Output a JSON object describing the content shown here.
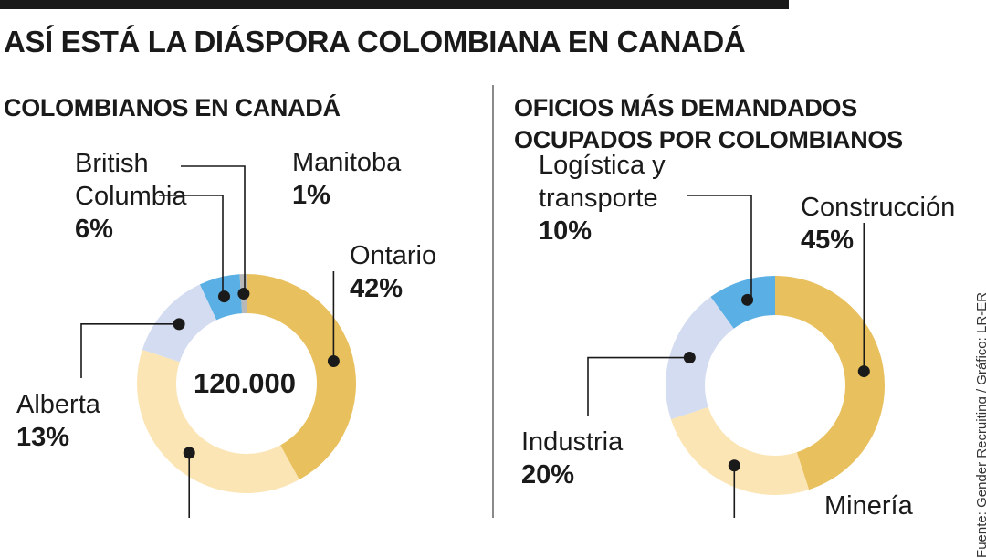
{
  "headline": "ASÍ ESTÁ LA DIÁSPORA COLOMBIANA EN CANADÁ",
  "credit": "Fuente: Gender Recruiting / Gráfico: LR-ER",
  "colors": {
    "ochre": "#e8c05e",
    "cream": "#fbe5b4",
    "lavender": "#d3dcf0",
    "sky": "#5aafe4",
    "grey": "#b8b8b8"
  },
  "chart_data": [
    {
      "type": "pie",
      "title": "COLOMBIANOS EN CANADÁ",
      "center_label": "120.000",
      "series": [
        {
          "label": "Ontario",
          "value_label": "42%",
          "value": 42,
          "color": "#e8c05e"
        },
        {
          "label": "",
          "value_label": "",
          "value": 38,
          "color": "#fbe5b4"
        },
        {
          "label": "Alberta",
          "value_label": "13%",
          "value": 13,
          "color": "#d3dcf0"
        },
        {
          "label": "British Columbia",
          "value_label": "6%",
          "value": 6,
          "color": "#5aafe4"
        },
        {
          "label": "Manitoba",
          "value_label": "1%",
          "value": 1,
          "color": "#b8b8b8"
        }
      ]
    },
    {
      "type": "pie",
      "title": "OFICIOS MÁS DEMANDADOS OCUPADOS POR COLOMBIANOS",
      "center_label": "",
      "series": [
        {
          "label": "Construcción",
          "value_label": "45%",
          "value": 45,
          "color": "#e8c05e"
        },
        {
          "label": "Minería",
          "value_label": "",
          "value": 25,
          "color": "#fbe5b4"
        },
        {
          "label": "Industria",
          "value_label": "20%",
          "value": 20,
          "color": "#d3dcf0"
        },
        {
          "label": "Logística y transporte",
          "value_label": "10%",
          "value": 10,
          "color": "#5aafe4"
        }
      ]
    }
  ]
}
